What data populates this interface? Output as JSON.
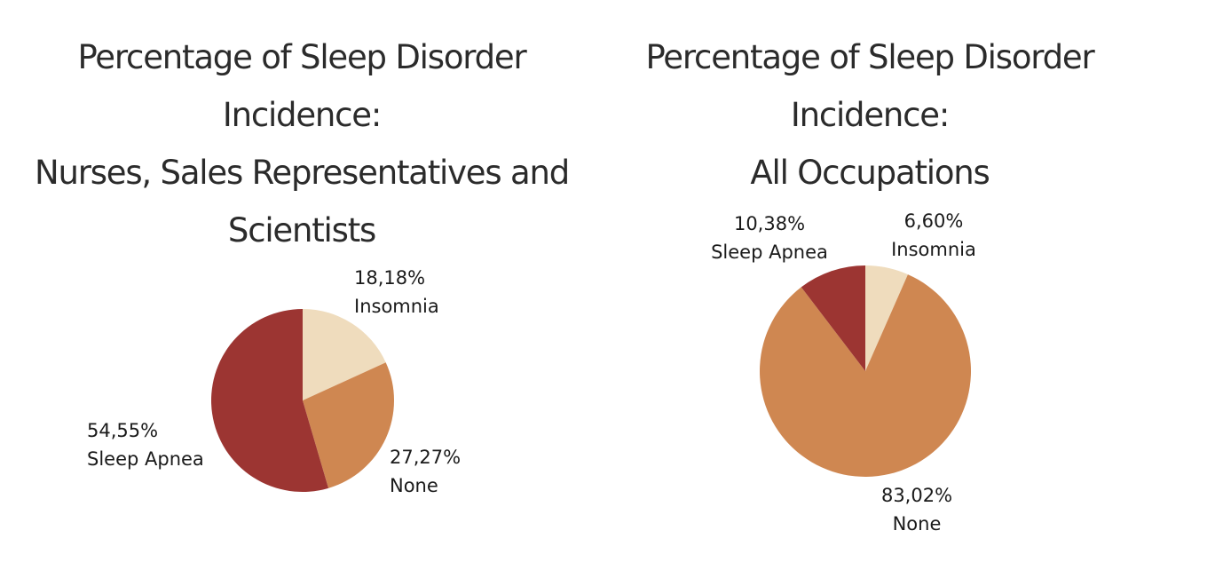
{
  "chart_data": [
    {
      "type": "pie",
      "title_lines": [
        "Percentage of Sleep Disorder Incidence:",
        "Nurses, Sales Representatives and",
        "Scientists"
      ],
      "slices": [
        {
          "category": "Insomnia",
          "value": 18.18,
          "label": "18,18%",
          "color": "#EFDCBD"
        },
        {
          "category": "None",
          "value": 27.27,
          "label": "27,27%",
          "color": "#CF8751"
        },
        {
          "category": "Sleep Apnea",
          "value": 54.55,
          "label": "54,55%",
          "color": "#9C3532"
        }
      ]
    },
    {
      "type": "pie",
      "title_lines": [
        "Percentage of Sleep Disorder Incidence:",
        "All Occupations"
      ],
      "slices": [
        {
          "category": "Insomnia",
          "value": 6.6,
          "label": "6,60%",
          "color": "#EFDCBD"
        },
        {
          "category": "None",
          "value": 83.02,
          "label": "83,02%",
          "color": "#CF8751"
        },
        {
          "category": "Sleep Apnea",
          "value": 10.38,
          "label": "10,38%",
          "color": "#9C3532"
        }
      ]
    }
  ]
}
